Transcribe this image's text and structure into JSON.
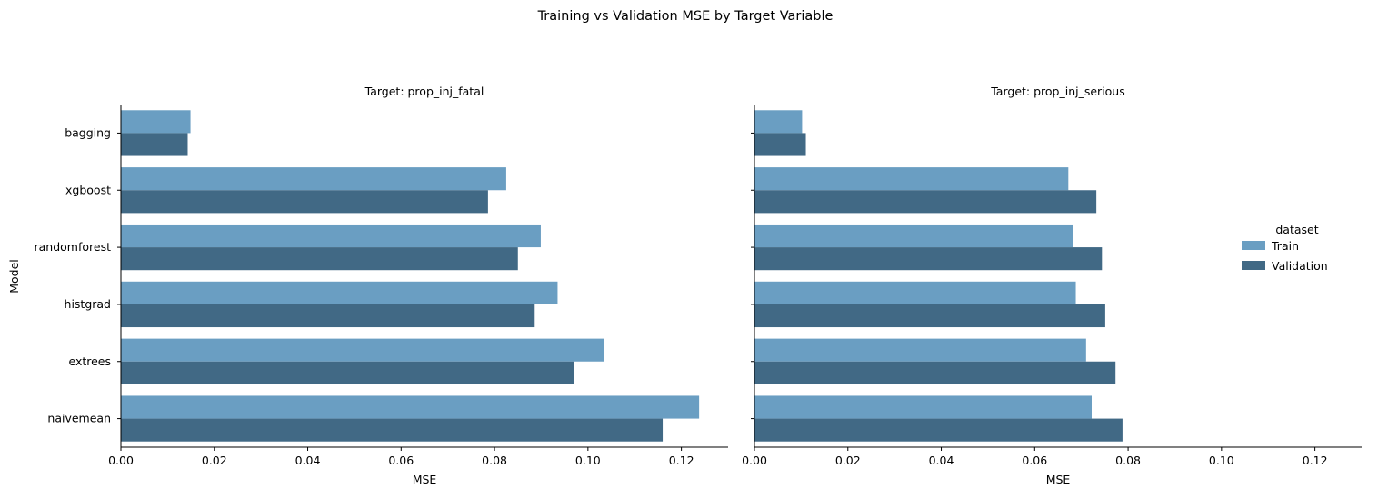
{
  "chart_data": {
    "type": "bar",
    "orientation": "horizontal",
    "title": "Training vs Validation MSE by Target Variable",
    "ylabel": "Model",
    "categories": [
      "bagging",
      "xgboost",
      "randomforest",
      "histgrad",
      "extrees",
      "naivemean"
    ],
    "legend": {
      "title": "dataset",
      "placement": "right",
      "entries": [
        "Train",
        "Validation"
      ]
    },
    "xlim": [
      0,
      0.13
    ],
    "xticks": [
      0.0,
      0.02,
      0.04,
      0.06,
      0.08,
      0.1,
      0.12
    ],
    "xtick_labels": [
      "0.00",
      "0.02",
      "0.04",
      "0.06",
      "0.08",
      "0.10",
      "0.12"
    ],
    "grid": false,
    "colors": {
      "Train": "#6a9ec2",
      "Validation": "#416985"
    },
    "panels": [
      {
        "title": "Target: prop_inj_fatal",
        "xlabel": "MSE",
        "series": [
          {
            "name": "Train",
            "values": [
              0.0149,
              0.0825,
              0.0899,
              0.0935,
              0.1035,
              0.1238
            ]
          },
          {
            "name": "Validation",
            "values": [
              0.0143,
              0.0786,
              0.085,
              0.0886,
              0.0971,
              0.116
            ]
          }
        ]
      },
      {
        "title": "Target: prop_inj_serious",
        "xlabel": "MSE",
        "series": [
          {
            "name": "Train",
            "values": [
              0.0102,
              0.0672,
              0.0683,
              0.0688,
              0.071,
              0.0722
            ]
          },
          {
            "name": "Validation",
            "values": [
              0.011,
              0.0732,
              0.0744,
              0.0751,
              0.0773,
              0.0788
            ]
          }
        ]
      }
    ]
  }
}
